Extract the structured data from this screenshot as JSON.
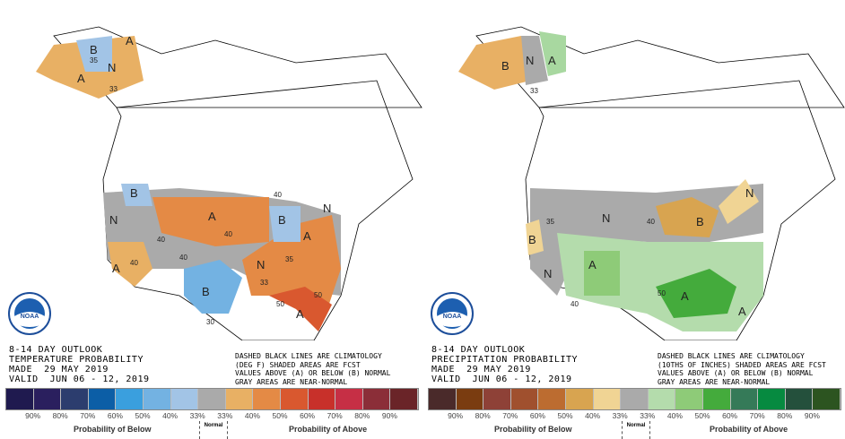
{
  "panels": [
    {
      "id": "temperature",
      "title_lines": [
        "8-14 DAY OUTLOOK",
        "TEMPERATURE PROBABILITY",
        "MADE  29 MAY 2019",
        "VALID  JUN 06 - 12, 2019"
      ],
      "note_lines": [
        "DASHED BLACK LINES ARE CLIMATOLOGY",
        "(DEG F) SHADED AREAS ARE FCST",
        "VALUES ABOVE (A) OR BELOW (B) NORMAL",
        "GRAY AREAS ARE NEAR-NORMAL"
      ],
      "legend_colors": [
        "#1f1a4f",
        "#2a1f5e",
        "#2c3d6e",
        "#0c5ea6",
        "#3a9fde",
        "#73b2e2",
        "#a2c4e6",
        "#aaaaaa",
        "#e8b064",
        "#e48a45",
        "#d9582f",
        "#c8302a",
        "#c62f45",
        "#8b2e38",
        "#6a2428"
      ],
      "legend_ticks": [
        "90%",
        "80%",
        "70%",
        "60%",
        "50%",
        "40%",
        "33%",
        "33%",
        "40%",
        "50%",
        "60%",
        "70%",
        "80%",
        "90%"
      ],
      "below_label": "Probability of Below",
      "normal_label": "Normal",
      "above_label": "Probability of Above",
      "region_labels": [
        "B",
        "A",
        "N",
        "A",
        "N",
        "B",
        "A",
        "B",
        "N",
        "A",
        "N",
        "B",
        "A",
        "A"
      ],
      "contour_labels": [
        "40",
        "35",
        "33",
        "40",
        "40",
        "35",
        "40",
        "33",
        "50",
        "50",
        "30",
        "40"
      ]
    },
    {
      "id": "precipitation",
      "title_lines": [
        "8-14 DAY OUTLOOK",
        "PRECIPITATION PROBABILITY",
        "MADE  29 MAY 2019",
        "VALID  JUN 06 - 12, 2019"
      ],
      "note_lines": [
        "DASHED BLACK LINES ARE CLIMATOLOGY",
        "(10THS OF INCHES) SHADED AREAS ARE FCST",
        "VALUES ABOVE (A) OR BELOW (B) NORMAL",
        "GRAY AREAS ARE NEAR-NORMAL"
      ],
      "legend_colors": [
        "#4a2a2a",
        "#7a3c10",
        "#8e4137",
        "#a0502e",
        "#bc6c30",
        "#d8a450",
        "#f0d494",
        "#aaaaaa",
        "#b4dcac",
        "#8ecb78",
        "#44ab3c",
        "#357a58",
        "#068a40",
        "#24503c",
        "#2c5420"
      ],
      "legend_ticks": [
        "90%",
        "80%",
        "70%",
        "60%",
        "50%",
        "40%",
        "33%",
        "33%",
        "40%",
        "50%",
        "60%",
        "70%",
        "80%",
        "90%"
      ],
      "below_label": "Probability of Below",
      "normal_label": "Normal",
      "above_label": "Probability of Above",
      "region_labels": [
        "B",
        "N",
        "A",
        "N",
        "B",
        "B",
        "N",
        "N",
        "A",
        "A",
        "A"
      ],
      "contour_labels": [
        "33",
        "35",
        "40",
        "50",
        "40"
      ]
    }
  ],
  "logo_text": "NOAA"
}
